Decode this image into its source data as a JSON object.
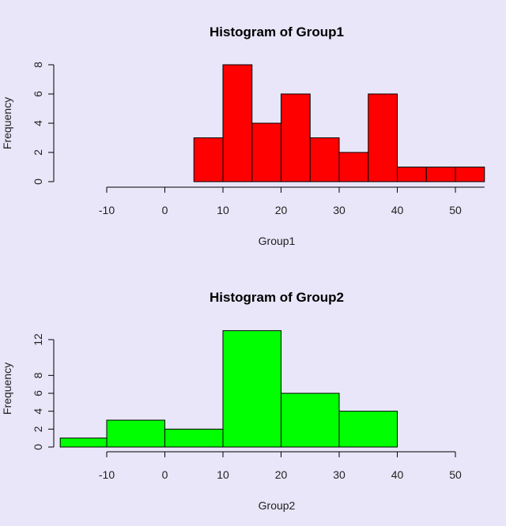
{
  "chart_data": [
    {
      "type": "bar",
      "title": "Histogram of Group1",
      "xlabel": "Group1",
      "ylabel": "Frequency",
      "color": "#ff0000",
      "bins": [
        [
          5,
          10
        ],
        [
          10,
          15
        ],
        [
          15,
          20
        ],
        [
          20,
          25
        ],
        [
          25,
          30
        ],
        [
          30,
          35
        ],
        [
          35,
          40
        ],
        [
          40,
          45
        ],
        [
          45,
          50
        ],
        [
          50,
          55
        ]
      ],
      "values": [
        3,
        8,
        4,
        6,
        3,
        2,
        6,
        1,
        1,
        1
      ],
      "xlim": [
        -10,
        55
      ],
      "xticks": [
        -10,
        0,
        10,
        20,
        30,
        40,
        50
      ],
      "xtick_labels": [
        "-10",
        "0",
        "10",
        "20",
        "30",
        "40",
        "50"
      ],
      "ylim": [
        0,
        8
      ],
      "yticks": [
        0,
        2,
        4,
        6,
        8
      ],
      "ytick_labels": [
        "0",
        "2",
        "4",
        "6",
        "8"
      ]
    },
    {
      "type": "bar",
      "title": "Histogram of Group2",
      "xlabel": "Group2",
      "ylabel": "Frequency",
      "color": "#00ff00",
      "bins": [
        [
          -18,
          -10
        ],
        [
          -10,
          0
        ],
        [
          0,
          10
        ],
        [
          10,
          20
        ],
        [
          20,
          30
        ],
        [
          30,
          40
        ]
      ],
      "values": [
        1,
        3,
        2,
        13,
        6,
        4
      ],
      "xlim": [
        -10,
        50
      ],
      "xticks": [
        -10,
        0,
        10,
        20,
        30,
        40,
        50
      ],
      "xtick_labels": [
        "-10",
        "0",
        "10",
        "20",
        "30",
        "40",
        "50"
      ],
      "ylim": [
        0,
        12
      ],
      "yticks": [
        0,
        2,
        4,
        6,
        8,
        12
      ],
      "ytick_labels": [
        "0",
        "2",
        "4",
        "6",
        "8",
        "12"
      ]
    }
  ]
}
